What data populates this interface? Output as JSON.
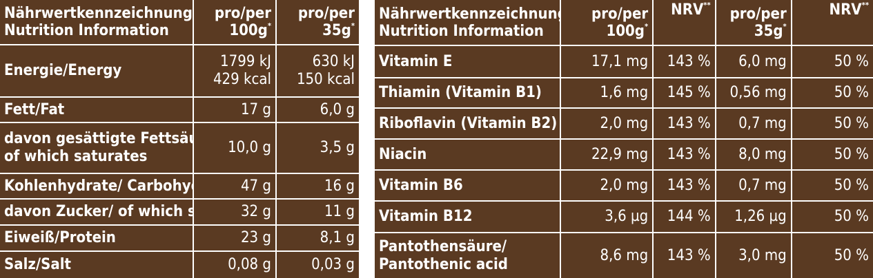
{
  "left_table": {
    "header": {
      "label_line1": "Nährwertkennzeichnung/",
      "label_line2": "Nutrition Information",
      "col1_line1": "pro/per",
      "col1_line2": "100g",
      "col1_sup": "*",
      "col2_line1": "pro/per",
      "col2_line2": "35g",
      "col2_sup": "*"
    },
    "rows": [
      {
        "label_line1": "Energie/Energy",
        "label_line2": "",
        "v1_line1": "1799 kJ",
        "v1_line2": "429 kcal",
        "v2_line1": "630 kJ",
        "v2_line2": "150 kcal"
      },
      {
        "label_line1": "Fett/Fat",
        "label_line2": "",
        "v1_line1": "17 g",
        "v1_line2": "",
        "v2_line1": "6,0 g",
        "v2_line2": ""
      },
      {
        "label_line1": "davon gesättigte Fettsäuren/",
        "label_line2": "of which saturates",
        "v1_line1": "10,0 g",
        "v1_line2": "",
        "v2_line1": "3,5 g",
        "v2_line2": ""
      },
      {
        "label_line1": "Kohlenhydrate/ Carbohydrate",
        "label_line2": "",
        "v1_line1": "47 g",
        "v1_line2": "",
        "v2_line1": "16 g",
        "v2_line2": ""
      },
      {
        "label_line1": "davon Zucker/ of which sugars",
        "label_line2": "",
        "v1_line1": "32 g",
        "v1_line2": "",
        "v2_line1": "11 g",
        "v2_line2": ""
      },
      {
        "label_line1": "Eiweiß/Protein",
        "label_line2": "",
        "v1_line1": "23 g",
        "v1_line2": "",
        "v2_line1": "8,1 g",
        "v2_line2": ""
      },
      {
        "label_line1": "Salz/Salt",
        "label_line2": "",
        "v1_line1": "0,08 g",
        "v1_line2": "",
        "v2_line1": "0,03 g",
        "v2_line2": ""
      }
    ]
  },
  "right_table": {
    "header": {
      "label_line1": "Nährwertkennzeichnung/",
      "label_line2": "Nutrition Information",
      "col1_line1": "pro/per",
      "col1_line2": "100g",
      "col1_sup": "*",
      "nrv1": "NRV",
      "nrv1_sup": "**",
      "col2_line1": "pro/per",
      "col2_line2": "35g",
      "col2_sup": "*",
      "nrv2": "NRV",
      "nrv2_sup": "**"
    },
    "rows": [
      {
        "label_line1": "Vitamin E",
        "label_line2": "",
        "per100": "17,1 mg",
        "nrv100": "143 %",
        "per35": "6,0 mg",
        "nrv35": "50 %"
      },
      {
        "label_line1": "Thiamin (Vitamin B1)",
        "label_line2": "",
        "per100": "1,6 mg",
        "nrv100": "145 %",
        "per35": "0,56 mg",
        "nrv35": "50 %"
      },
      {
        "label_line1": "Riboflavin (Vitamin B2)",
        "label_line2": "",
        "per100": "2,0 mg",
        "nrv100": "143 %",
        "per35": "0,7 mg",
        "nrv35": "50 %"
      },
      {
        "label_line1": "Niacin",
        "label_line2": "",
        "per100": "22,9 mg",
        "nrv100": "143 %",
        "per35": "8,0 mg",
        "nrv35": "50 %"
      },
      {
        "label_line1": "Vitamin B6",
        "label_line2": "",
        "per100": "2,0 mg",
        "nrv100": "143 %",
        "per35": "0,7 mg",
        "nrv35": "50 %"
      },
      {
        "label_line1": "Vitamin B12",
        "label_line2": "",
        "per100": "3,6 µg",
        "nrv100": "144 %",
        "per35": "1,26 µg",
        "nrv35": "50 %"
      },
      {
        "label_line1": "Pantothensäure/",
        "label_line2": "Pantothenic acid",
        "per100": "8,6 mg",
        "nrv100": "143 %",
        "per35": "3,0 mg",
        "nrv35": "50 %"
      }
    ]
  },
  "colors": {
    "background": "#5a3a22",
    "text": "#ffffff",
    "grid": "#ffffff"
  }
}
